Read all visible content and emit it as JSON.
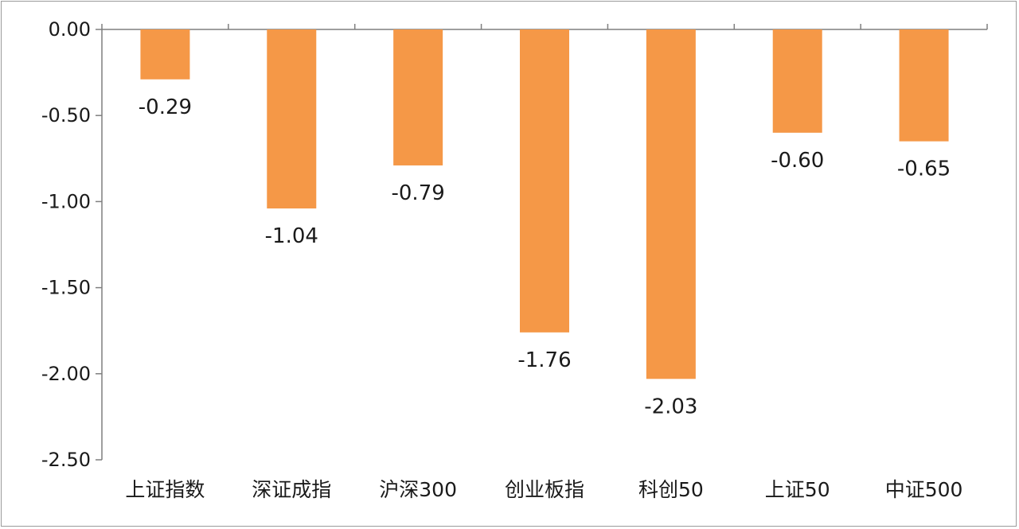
{
  "chart_data": {
    "type": "bar",
    "categories": [
      "上证指数",
      "深证成指",
      "沪深300",
      "创业板指",
      "科创50",
      "上证50",
      "中证500"
    ],
    "values": [
      -0.29,
      -1.04,
      -0.79,
      -1.76,
      -2.03,
      -0.6,
      -0.65
    ],
    "data_labels": [
      "-0.29",
      "-1.04",
      "-0.79",
      "-1.76",
      "-2.03",
      "-0.60",
      "-0.65"
    ],
    "ylim": [
      -2.5,
      0
    ],
    "yticks": [
      0,
      -0.5,
      -1.0,
      -1.5,
      -2.0,
      -2.5
    ],
    "ytick_labels": [
      "0.00",
      "-0.50",
      "-1.00",
      "-1.50",
      "-2.00",
      "-2.50"
    ],
    "bar_color": "#f59847",
    "axis_color": "#7f7f7f",
    "grid": false,
    "legend": "none"
  }
}
